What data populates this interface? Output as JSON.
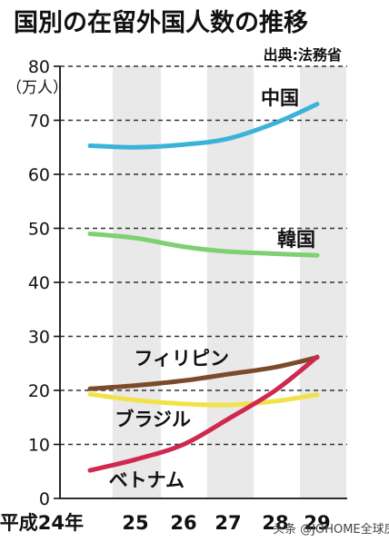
{
  "title": "国別の在留外国人数の推移",
  "source": "出典:法務省",
  "credit": "头条 @JOHOME全球房产",
  "chart_data": {
    "type": "line",
    "ylabel": "（万人）",
    "ylim": [
      0,
      80
    ],
    "yticks": [
      0,
      10,
      20,
      30,
      40,
      50,
      60,
      70,
      80
    ],
    "categories": [
      "平成24年",
      "25",
      "26",
      "27",
      "28",
      "29"
    ],
    "grid": "horizontal dashed, alternating gray vertical bands",
    "series": [
      {
        "name": "中国",
        "color": "#3bb3d9",
        "values": [
          65.3,
          65.0,
          65.5,
          66.6,
          69.5,
          73.0
        ]
      },
      {
        "name": "韓国",
        "color": "#7fcf73",
        "values": [
          49.0,
          48.2,
          46.6,
          45.7,
          45.3,
          45.0
        ]
      },
      {
        "name": "フィリピン",
        "color": "#7b4a2a",
        "values": [
          20.3,
          20.9,
          21.8,
          23.0,
          24.3,
          26.1
        ]
      },
      {
        "name": "ブラジル",
        "color": "#f2e24a",
        "values": [
          19.3,
          18.2,
          17.5,
          17.3,
          18.0,
          19.2
        ]
      },
      {
        "name": "ベトナム",
        "color": "#d0284f",
        "values": [
          5.2,
          7.2,
          10.0,
          14.7,
          20.0,
          26.2
        ]
      }
    ]
  }
}
